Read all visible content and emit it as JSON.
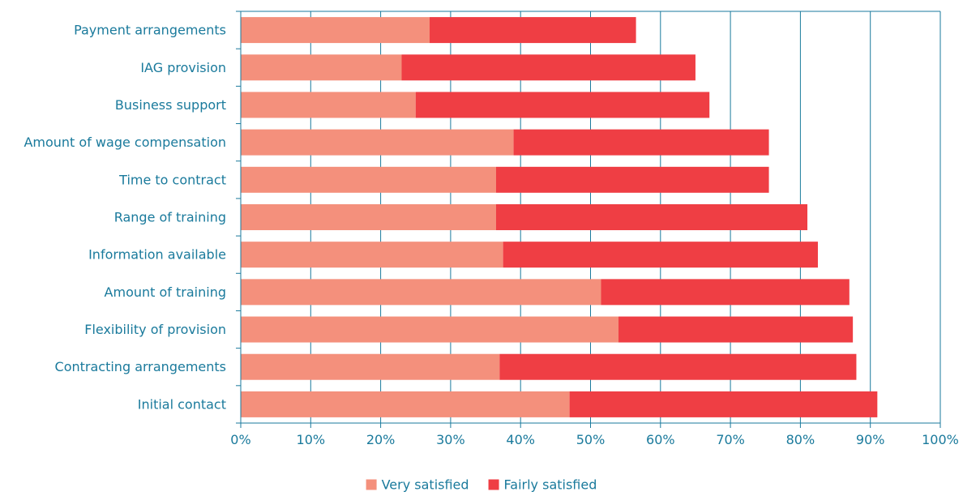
{
  "chart_data": {
    "type": "bar",
    "orientation": "horizontal",
    "stacked": true,
    "title": "",
    "xlabel": "",
    "ylabel": "",
    "xlim": [
      0,
      100
    ],
    "x_ticks": [
      "0%",
      "10%",
      "20%",
      "30%",
      "40%",
      "50%",
      "60%",
      "70%",
      "80%",
      "90%",
      "100%"
    ],
    "grid": "vertical",
    "legend_position": "bottom",
    "categories": [
      "Payment arrangements",
      "IAG provision",
      "Business support",
      "Amount of wage compensation",
      "Time to contract",
      "Range of training",
      "Information available",
      "Amount of training",
      "Flexibility of provision",
      "Contracting arrangements",
      "Initial contact"
    ],
    "series": [
      {
        "name": "Very satisfied",
        "color": "#f4907c",
        "values": [
          27,
          23,
          25,
          39,
          36.5,
          36.5,
          37.5,
          51.5,
          54,
          37,
          47
        ]
      },
      {
        "name": "Fairly satisfied",
        "color": "#ef3e44",
        "values": [
          29.5,
          42,
          42,
          36.5,
          39,
          44.5,
          45,
          35.5,
          33.5,
          51,
          44
        ]
      }
    ],
    "colors": {
      "axis": "#1a7a9c",
      "text": "#1a7a9c"
    }
  }
}
